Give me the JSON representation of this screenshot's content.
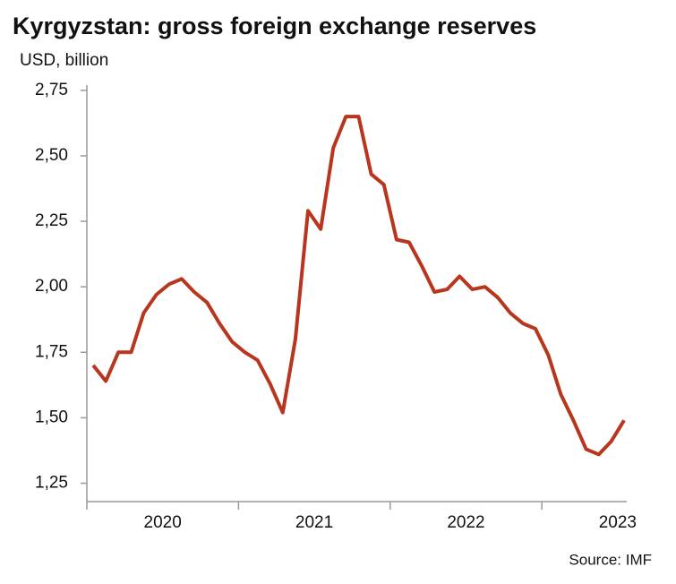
{
  "chart_data": {
    "type": "line",
    "title": "Kyrgyzstan: gross foreign exchange reserves",
    "y_axis_label": "USD, billion",
    "source": "Source: IMF",
    "x": [
      2020.042,
      2020.125,
      2020.208,
      2020.292,
      2020.375,
      2020.458,
      2020.542,
      2020.625,
      2020.708,
      2020.792,
      2020.875,
      2020.958,
      2021.042,
      2021.125,
      2021.208,
      2021.292,
      2021.375,
      2021.458,
      2021.542,
      2021.625,
      2021.708,
      2021.792,
      2021.875,
      2021.958,
      2022.042,
      2022.125,
      2022.208,
      2022.292,
      2022.375,
      2022.458,
      2022.542,
      2022.625,
      2022.708,
      2022.792,
      2022.875,
      2022.958,
      2023.042,
      2023.125,
      2023.208,
      2023.292,
      2023.375,
      2023.458,
      2023.542
    ],
    "series": [
      {
        "name": "Gross foreign exchange reserves",
        "color": "#b8361e",
        "values": [
          1.7,
          1.64,
          1.75,
          1.75,
          1.9,
          1.97,
          2.01,
          2.03,
          1.98,
          1.94,
          1.86,
          1.79,
          1.75,
          1.72,
          1.63,
          1.52,
          1.8,
          2.29,
          2.22,
          2.53,
          2.65,
          2.65,
          2.43,
          2.39,
          2.18,
          2.17,
          2.08,
          1.98,
          1.99,
          2.04,
          1.99,
          2.0,
          1.96,
          1.9,
          1.86,
          1.84,
          1.74,
          1.59,
          1.49,
          1.38,
          1.36,
          1.41,
          1.49
        ]
      }
    ],
    "xlim": [
      2020,
      2023.56
    ],
    "xticks": [
      2020,
      2021,
      2022,
      2023
    ],
    "ylim": [
      1.18,
      2.77
    ],
    "yticks": [
      {
        "value": 1.25,
        "label": "1,25"
      },
      {
        "value": 1.5,
        "label": "1,50"
      },
      {
        "value": 1.75,
        "label": "1,75"
      },
      {
        "value": 2.0,
        "label": "2,00"
      },
      {
        "value": 2.25,
        "label": "2,25"
      },
      {
        "value": 2.5,
        "label": "2,50"
      },
      {
        "value": 2.75,
        "label": "2,75"
      }
    ],
    "grid": false
  }
}
